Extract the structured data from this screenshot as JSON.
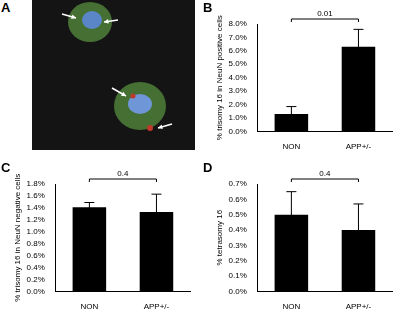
{
  "image_panel": {
    "label": "A"
  },
  "chart_data": [
    {
      "label": "B",
      "type": "bar",
      "ylabel": "% trisomy 16 in NeuN positive cells",
      "categories": [
        "NON",
        "APP+/-"
      ],
      "values": [
        1.3,
        6.3
      ],
      "errors": [
        0.55,
        1.3
      ],
      "color": "#000000",
      "ylim": [
        0,
        8
      ],
      "yticks": [
        {
          "value": 0,
          "label": "0.0%"
        },
        {
          "value": 1,
          "label": "1.0%"
        },
        {
          "value": 2,
          "label": "2.0%"
        },
        {
          "value": 3,
          "label": "3.0%"
        },
        {
          "value": 4,
          "label": "4.0%"
        },
        {
          "value": 5,
          "label": "5.0%"
        },
        {
          "value": 6,
          "label": "6.0%"
        },
        {
          "value": 7,
          "label": "7.0%"
        },
        {
          "value": 8,
          "label": "8.0%"
        }
      ],
      "grid": false,
      "annotation": "0.01"
    },
    {
      "label": "C",
      "type": "bar",
      "ylabel": "% trisomy 16 in NeuN negative cells",
      "categories": [
        "NON",
        "APP+/-"
      ],
      "values": [
        1.41,
        1.33
      ],
      "errors": [
        0.08,
        0.3
      ],
      "color": "#000000",
      "ylim": [
        0,
        1.8
      ],
      "yticks": [
        {
          "value": 0,
          "label": "0.0%"
        },
        {
          "value": 0.2,
          "label": "0.2%"
        },
        {
          "value": 0.4,
          "label": "0.4%"
        },
        {
          "value": 0.6,
          "label": "0.6%"
        },
        {
          "value": 0.8,
          "label": "0.8%"
        },
        {
          "value": 1.0,
          "label": "1.0%"
        },
        {
          "value": 1.2,
          "label": "1.2%"
        },
        {
          "value": 1.4,
          "label": "1.4%"
        },
        {
          "value": 1.6,
          "label": "1.6%"
        },
        {
          "value": 1.8,
          "label": "1.8%"
        }
      ],
      "grid": false,
      "annotation": "0.4"
    },
    {
      "label": "D",
      "type": "bar",
      "ylabel": "% tetrasomy 16",
      "categories": [
        "NON",
        "APP+/-"
      ],
      "values": [
        0.5,
        0.4
      ],
      "errors": [
        0.15,
        0.17
      ],
      "color": "#000000",
      "ylim": [
        0,
        0.7
      ],
      "yticks": [
        {
          "value": 0,
          "label": "0.0%"
        },
        {
          "value": 0.1,
          "label": "0.1%"
        },
        {
          "value": 0.2,
          "label": "0.2%"
        },
        {
          "value": 0.3,
          "label": "0.3%"
        },
        {
          "value": 0.4,
          "label": "0.4%"
        },
        {
          "value": 0.5,
          "label": "0.5%"
        },
        {
          "value": 0.6,
          "label": "0.6%"
        },
        {
          "value": 0.7,
          "label": "0.7%"
        }
      ],
      "grid": false,
      "annotation": "0.4"
    }
  ]
}
